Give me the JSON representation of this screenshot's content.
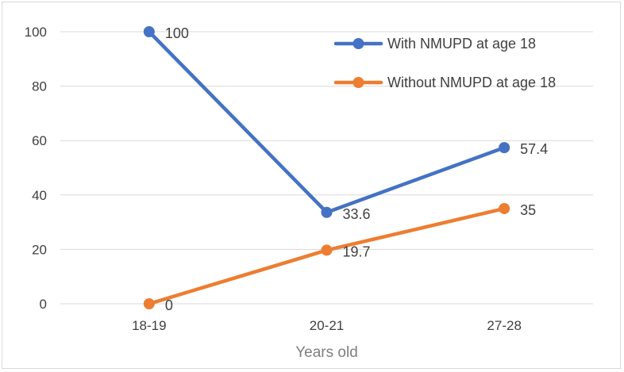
{
  "chart_data": {
    "type": "line",
    "categories": [
      "18-19",
      "20-21",
      "27-28"
    ],
    "xlabel": "Years old",
    "ylabel": "",
    "ylim": [
      0,
      100
    ],
    "yticks": [
      0,
      20,
      40,
      60,
      80,
      100
    ],
    "grid": true,
    "legend_position": "top-right",
    "series": [
      {
        "name": "With NMUPD at age 18",
        "values": [
          100,
          33.6,
          57.4
        ],
        "labels": [
          "100",
          "33.6",
          "57.4"
        ],
        "color": "#4472C4"
      },
      {
        "name": "Without NMUPD at age 18",
        "values": [
          0,
          19.7,
          35
        ],
        "labels": [
          "0",
          "19.7",
          "35"
        ],
        "color": "#ED7D31"
      }
    ]
  }
}
